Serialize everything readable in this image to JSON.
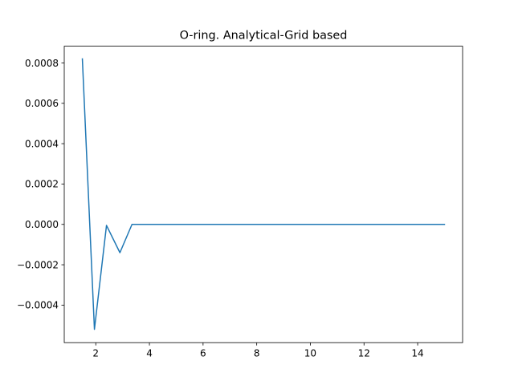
{
  "chart_data": {
    "type": "line",
    "title": "O-ring. Analytical-Grid based",
    "xlabel": "",
    "ylabel": "",
    "xlim": [
      0.825,
      15.675
    ],
    "ylim": [
      -0.000586,
      0.000883
    ],
    "xticks": [
      2,
      4,
      6,
      8,
      10,
      12,
      14
    ],
    "xtick_labels": [
      "2",
      "4",
      "6",
      "8",
      "10",
      "12",
      "14"
    ],
    "yticks": [
      -0.0004,
      -0.0002,
      0.0,
      0.0002,
      0.0004,
      0.0006,
      0.0008
    ],
    "ytick_labels": [
      "−0.0004",
      "−0.0002",
      "0.0000",
      "0.0002",
      "0.0004",
      "0.0006",
      "0.0008"
    ],
    "grid": false,
    "series": [
      {
        "color": "#1f77b4",
        "x": [
          1.5,
          1.95,
          2.4,
          2.9,
          3.35,
          15.0
        ],
        "y": [
          0.00082,
          -0.00052,
          -5e-06,
          -0.00014,
          0.0,
          0.0
        ]
      }
    ]
  }
}
